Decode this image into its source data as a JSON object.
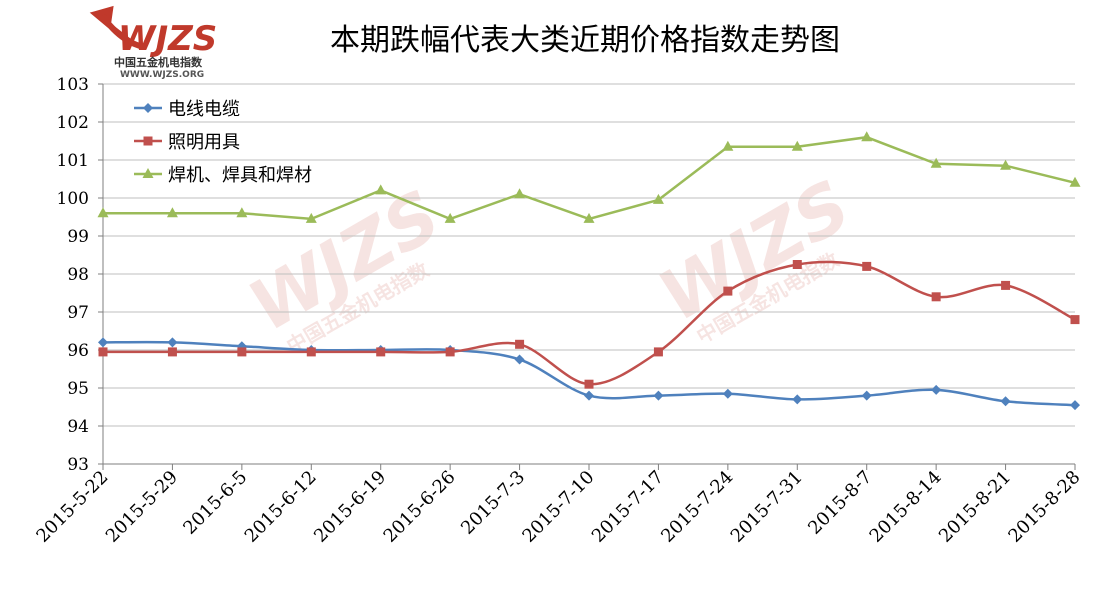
{
  "logo": {
    "brand": "WJZS",
    "subtitle": "中国五金机电指数",
    "url": "WWW.WJZS.ORG",
    "color": "#c0392b"
  },
  "chart_data": {
    "type": "line",
    "title": "本期跌幅代表大类近期价格指数走势图",
    "xlabel": "",
    "ylabel": "",
    "categories": [
      "2015-5-22",
      "2015-5-29",
      "2015-6-5",
      "2015-6-12",
      "2015-6-19",
      "2015-6-26",
      "2015-7-3",
      "2015-7-10",
      "2015-7-17",
      "2015-7-24",
      "2015-7-31",
      "2015-8-7",
      "2015-8-14",
      "2015-8-21",
      "2015-8-28"
    ],
    "ylim": [
      93,
      103
    ],
    "yticks": [
      93,
      94,
      95,
      96,
      97,
      98,
      99,
      100,
      101,
      102,
      103
    ],
    "grid": true,
    "legend_position": "top-left",
    "series": [
      {
        "name": "电线电缆",
        "color": "#4f81bd",
        "marker": "diamond",
        "smooth": true,
        "values": [
          96.2,
          96.2,
          96.1,
          96.0,
          96.0,
          96.0,
          95.75,
          94.8,
          94.8,
          94.85,
          94.7,
          94.8,
          94.95,
          94.65,
          94.55
        ]
      },
      {
        "name": "照明用具",
        "color": "#c0504d",
        "marker": "square",
        "smooth": true,
        "values": [
          95.95,
          95.95,
          95.95,
          95.95,
          95.95,
          95.95,
          96.15,
          95.1,
          95.95,
          97.55,
          98.25,
          98.2,
          97.4,
          97.7,
          96.8
        ]
      },
      {
        "name": "焊机、焊具和焊材",
        "color": "#9bbb59",
        "marker": "triangle",
        "smooth": false,
        "values": [
          99.6,
          99.6,
          99.6,
          99.45,
          100.2,
          99.45,
          100.1,
          99.45,
          99.95,
          101.35,
          101.35,
          101.6,
          100.9,
          100.85,
          100.4
        ]
      }
    ]
  }
}
